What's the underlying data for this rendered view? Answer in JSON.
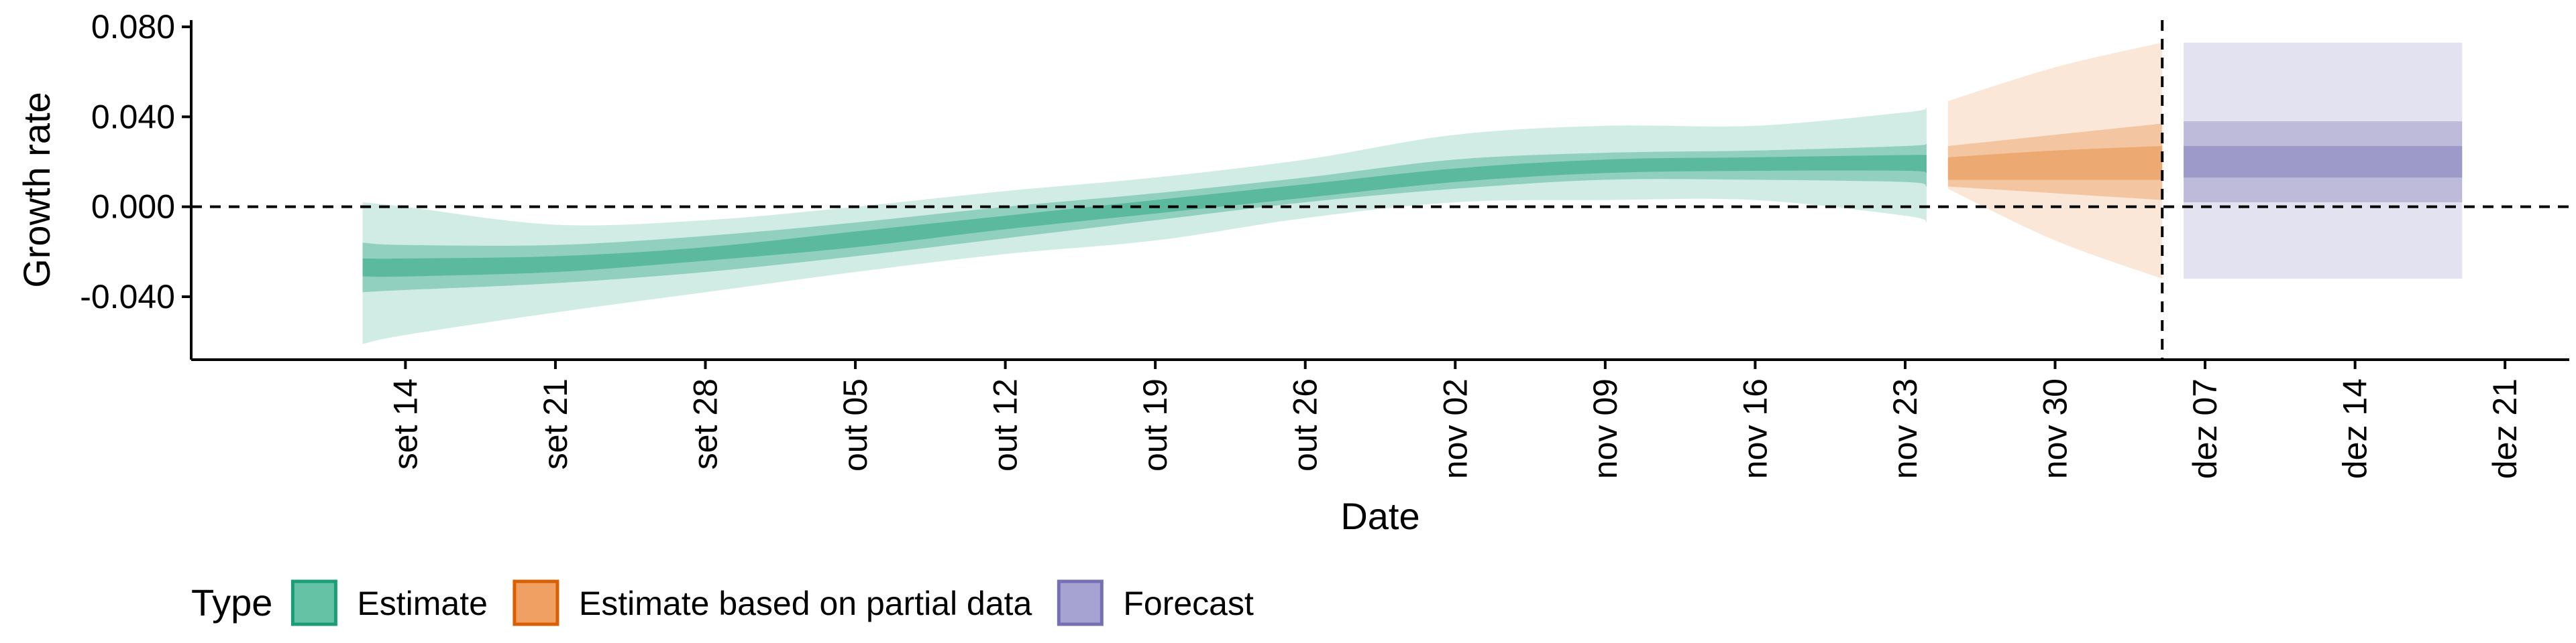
{
  "chart_data": {
    "type": "area",
    "title": "",
    "xlabel": "Date",
    "ylabel": "Growth rate",
    "ylim": [
      -0.068,
      0.083
    ],
    "yticks": [
      {
        "value": -0.04,
        "label": "-0.040"
      },
      {
        "value": 0.0,
        "label": "0.000"
      },
      {
        "value": 0.04,
        "label": "0.040"
      },
      {
        "value": 0.08,
        "label": "0.080"
      }
    ],
    "xlim": [
      "2020-09-04",
      "2020-12-24"
    ],
    "xticks": [
      {
        "date": "2020-09-14",
        "label": "set 14"
      },
      {
        "date": "2020-09-21",
        "label": "set 21"
      },
      {
        "date": "2020-09-28",
        "label": "set 28"
      },
      {
        "date": "2020-10-05",
        "label": "out 05"
      },
      {
        "date": "2020-10-12",
        "label": "out 12"
      },
      {
        "date": "2020-10-19",
        "label": "out 19"
      },
      {
        "date": "2020-10-26",
        "label": "out 26"
      },
      {
        "date": "2020-11-02",
        "label": "nov 02"
      },
      {
        "date": "2020-11-09",
        "label": "nov 09"
      },
      {
        "date": "2020-11-16",
        "label": "nov 16"
      },
      {
        "date": "2020-11-23",
        "label": "nov 23"
      },
      {
        "date": "2020-11-30",
        "label": "nov 30"
      },
      {
        "date": "2020-12-07",
        "label": "dez 07"
      },
      {
        "date": "2020-12-14",
        "label": "dez 14"
      },
      {
        "date": "2020-12-21",
        "label": "dez 21"
      }
    ],
    "hline_y": 0.0,
    "vline_date": "2020-12-05",
    "grid": false,
    "legend": {
      "title": "Type",
      "placement": "bottom-left",
      "entries": [
        {
          "key": "estimate",
          "label": "Estimate"
        },
        {
          "key": "partial",
          "label": "Estimate based on partial data"
        },
        {
          "key": "forecast",
          "label": "Forecast"
        }
      ]
    },
    "colors": {
      "estimate": {
        "fill": "#1b9e77",
        "legend": "#66c2a5",
        "stroke": "#1b9e77"
      },
      "partial": {
        "fill": "#e6883a",
        "legend": "#f0a062",
        "stroke": "#d95f02"
      },
      "forecast": {
        "fill": "#7570b3",
        "legend": "#a6a2d2",
        "stroke": "#7570b3"
      }
    },
    "series": [
      {
        "key": "estimate",
        "x": [
          "2020-09-12",
          "2020-09-14",
          "2020-09-21",
          "2020-09-28",
          "2020-10-05",
          "2020-10-12",
          "2020-10-19",
          "2020-10-26",
          "2020-11-02",
          "2020-11-09",
          "2020-11-16",
          "2020-11-23",
          "2020-11-24"
        ],
        "median": [
          -0.027,
          -0.027,
          -0.026,
          -0.021,
          -0.0145,
          -0.007,
          0.0,
          0.007,
          0.014,
          0.018,
          0.019,
          0.019,
          0.019
        ],
        "ci90": [
          [
            -0.061,
            0.002
          ],
          [
            -0.057,
            0.0
          ],
          [
            -0.047,
            -0.008
          ],
          [
            -0.038,
            -0.006
          ],
          [
            -0.029,
            0.0
          ],
          [
            -0.021,
            0.007
          ],
          [
            -0.015,
            0.013
          ],
          [
            -0.005,
            0.021
          ],
          [
            0.002,
            0.032
          ],
          [
            0.003,
            0.036
          ],
          [
            0.003,
            0.036
          ],
          [
            -0.004,
            0.042
          ],
          [
            -0.007,
            0.044
          ]
        ],
        "ci50": [
          [
            -0.038,
            -0.016
          ],
          [
            -0.037,
            -0.017
          ],
          [
            -0.034,
            -0.017
          ],
          [
            -0.029,
            -0.013
          ],
          [
            -0.022,
            -0.007
          ],
          [
            -0.014,
            0.0
          ],
          [
            -0.006,
            0.006
          ],
          [
            0.002,
            0.013
          ],
          [
            0.008,
            0.021
          ],
          [
            0.012,
            0.024
          ],
          [
            0.012,
            0.025
          ],
          [
            0.011,
            0.027
          ],
          [
            0.009,
            0.028
          ]
        ],
        "ci20": [
          [
            -0.031,
            -0.023
          ],
          [
            -0.031,
            -0.023
          ],
          [
            -0.029,
            -0.022
          ],
          [
            -0.024,
            -0.018
          ],
          [
            -0.018,
            -0.011
          ],
          [
            -0.01,
            -0.004
          ],
          [
            -0.003,
            0.003
          ],
          [
            0.004,
            0.01
          ],
          [
            0.011,
            0.017
          ],
          [
            0.015,
            0.021
          ],
          [
            0.016,
            0.022
          ],
          [
            0.016,
            0.023
          ],
          [
            0.015,
            0.023
          ]
        ]
      },
      {
        "key": "partial",
        "x": [
          "2020-11-25",
          "2020-11-30",
          "2020-12-05"
        ],
        "median": [
          0.017,
          0.019,
          0.02
        ],
        "ci90": [
          [
            0.008,
            0.047
          ],
          [
            -0.015,
            0.062
          ],
          [
            -0.032,
            0.073
          ]
        ],
        "ci50": [
          [
            0.009,
            0.027
          ],
          [
            0.006,
            0.032
          ],
          [
            0.003,
            0.037
          ]
        ],
        "ci20": [
          [
            0.012,
            0.022
          ],
          [
            0.012,
            0.025
          ],
          [
            0.012,
            0.027
          ]
        ]
      },
      {
        "key": "forecast",
        "x": [
          "2020-12-06",
          "2020-12-19"
        ],
        "median": [
          0.02,
          0.02
        ],
        "ci90": [
          [
            -0.032,
            0.073
          ],
          [
            -0.032,
            0.073
          ]
        ],
        "ci50": [
          [
            0.002,
            0.038
          ],
          [
            0.002,
            0.038
          ]
        ],
        "ci20": [
          [
            0.013,
            0.027
          ],
          [
            0.013,
            0.027
          ]
        ]
      }
    ]
  }
}
